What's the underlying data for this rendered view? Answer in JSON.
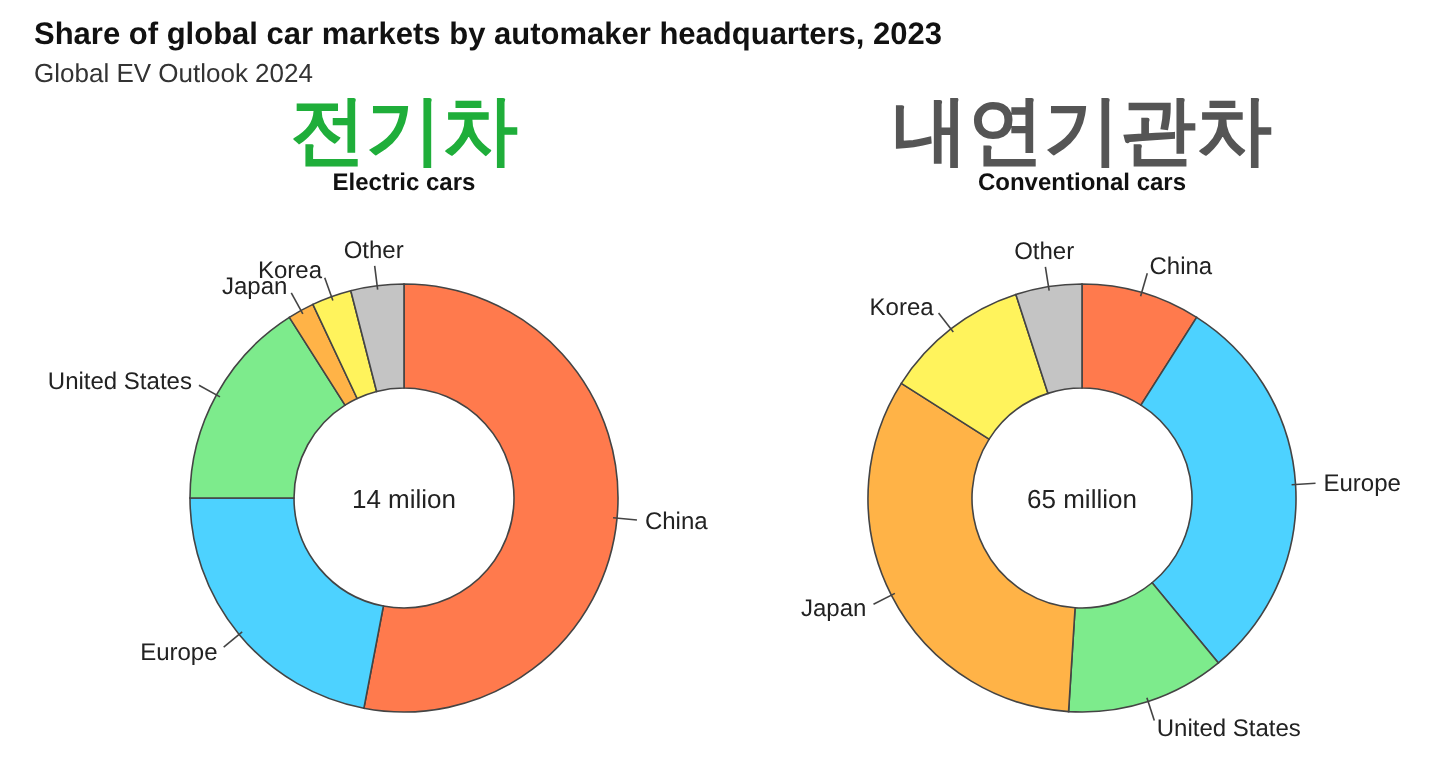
{
  "chart_data": [
    {
      "type": "donut",
      "title": "Share of global car markets by automaker headquarters, 2023",
      "subtitle": "Global EV Outlook 2024",
      "annotations": [
        "전기차",
        "Electric cars",
        "14 milion"
      ],
      "categories": [
        "China",
        "Europe",
        "United States",
        "Japan",
        "Korea",
        "Other"
      ],
      "values": [
        53,
        22,
        16,
        2,
        3,
        4
      ],
      "colors": [
        "#ff7a4d",
        "#4dd2ff",
        "#7deb8c",
        "#ffb347",
        "#fff35c",
        "#c4c4c4"
      ]
    },
    {
      "type": "donut",
      "annotations": [
        "내연기관차",
        "Conventional cars",
        "65 million"
      ],
      "categories": [
        "China",
        "Europe",
        "United States",
        "Japan",
        "Korea",
        "Other"
      ],
      "values": [
        9,
        30,
        12,
        33,
        11,
        5
      ],
      "colors": [
        "#ff7a4d",
        "#4dd2ff",
        "#7deb8c",
        "#ffb347",
        "#fff35c",
        "#c4c4c4"
      ]
    }
  ]
}
